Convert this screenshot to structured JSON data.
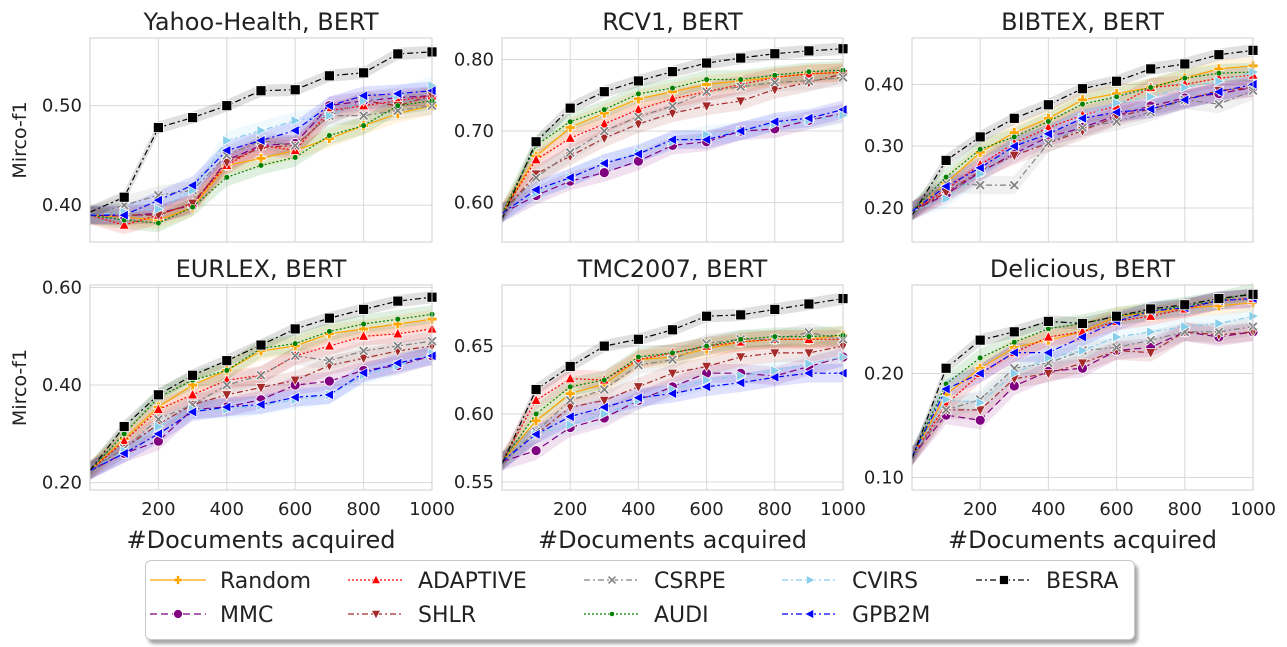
{
  "x_ticks": [
    200,
    400,
    600,
    800,
    1000
  ],
  "x_label": "#Documents acquired",
  "y_label": "Mirco-f1",
  "methods": [
    {
      "name": "Random",
      "color": "#ffa500",
      "dash": "",
      "marker": "plus"
    },
    {
      "name": "MMC",
      "color": "#800080",
      "dash": "7 4",
      "marker": "circle"
    },
    {
      "name": "ADAPTIVE",
      "color": "#ff0000",
      "dash": "2 2",
      "marker": "triangle-up"
    },
    {
      "name": "SHLR",
      "color": "#a52a2a",
      "dash": "6 3 2 3",
      "marker": "triangle-down"
    },
    {
      "name": "CSRPE",
      "color": "#808080",
      "dash": "6 3 2 3",
      "marker": "x"
    },
    {
      "name": "AUDI",
      "color": "#008000",
      "dash": "2 2",
      "marker": "dot"
    },
    {
      "name": "CVIRS",
      "color": "#87ceeb",
      "dash": "6 3 2 3",
      "marker": "triangle-right"
    },
    {
      "name": "GPB2M",
      "color": "#0000ff",
      "dash": "6 3 2 3",
      "marker": "triangle-left"
    },
    {
      "name": "BESRA",
      "color": "#000000",
      "dash": "6 3 2 3",
      "marker": "square"
    }
  ],
  "chart_data": [
    {
      "type": "line",
      "title": "Yahoo-Health, BERT",
      "ylim": [
        0.363,
        0.568
      ],
      "yticks": [
        0.4,
        0.5
      ],
      "ytick_labels": [
        "0.40",
        "0.50"
      ],
      "x": [
        0,
        100,
        200,
        300,
        400,
        500,
        600,
        700,
        800,
        900,
        1000
      ],
      "series": [
        {
          "name": "Random",
          "values": [
            0.39,
            0.388,
            0.385,
            0.398,
            0.44,
            0.447,
            0.455,
            0.467,
            0.48,
            0.492,
            0.5
          ]
        },
        {
          "name": "MMC",
          "values": [
            0.39,
            0.389,
            0.392,
            0.4,
            0.445,
            0.46,
            0.462,
            0.5,
            0.505,
            0.508,
            0.51
          ]
        },
        {
          "name": "ADAPTIVE",
          "values": [
            0.39,
            0.38,
            0.39,
            0.402,
            0.44,
            0.46,
            0.455,
            0.495,
            0.5,
            0.505,
            0.51
          ]
        },
        {
          "name": "SHLR",
          "values": [
            0.39,
            0.39,
            0.39,
            0.402,
            0.443,
            0.458,
            0.46,
            0.49,
            0.505,
            0.5,
            0.51
          ]
        },
        {
          "name": "CSRPE",
          "values": [
            0.39,
            0.4,
            0.41,
            0.415,
            0.45,
            0.465,
            0.46,
            0.49,
            0.49,
            0.495,
            0.5
          ]
        },
        {
          "name": "AUDI",
          "values": [
            0.39,
            0.385,
            0.382,
            0.398,
            0.428,
            0.44,
            0.448,
            0.47,
            0.48,
            0.5,
            0.505
          ]
        },
        {
          "name": "CVIRS",
          "values": [
            0.39,
            0.393,
            0.396,
            0.415,
            0.465,
            0.475,
            0.485,
            0.49,
            0.505,
            0.51,
            0.52
          ]
        },
        {
          "name": "GPB2M",
          "values": [
            0.39,
            0.39,
            0.405,
            0.42,
            0.455,
            0.465,
            0.475,
            0.5,
            0.51,
            0.512,
            0.515
          ]
        },
        {
          "name": "BESRA",
          "values": [
            0.393,
            0.408,
            0.478,
            0.488,
            0.5,
            0.515,
            0.516,
            0.53,
            0.533,
            0.552,
            0.554
          ]
        }
      ]
    },
    {
      "type": "line",
      "title": "RCV1, BERT",
      "ylim": [
        0.545,
        0.83
      ],
      "yticks": [
        0.6,
        0.7,
        0.8
      ],
      "ytick_labels": [
        "0.60",
        "0.70",
        "0.80"
      ],
      "x": [
        0,
        100,
        200,
        300,
        400,
        500,
        600,
        700,
        800,
        900,
        1000
      ],
      "series": [
        {
          "name": "Random",
          "values": [
            0.585,
            0.665,
            0.705,
            0.725,
            0.745,
            0.755,
            0.765,
            0.77,
            0.775,
            0.78,
            0.782
          ]
        },
        {
          "name": "MMC",
          "values": [
            0.585,
            0.61,
            0.63,
            0.642,
            0.658,
            0.68,
            0.685,
            0.7,
            0.703,
            0.715,
            0.725
          ]
        },
        {
          "name": "ADAPTIVE",
          "values": [
            0.585,
            0.66,
            0.69,
            0.71,
            0.73,
            0.745,
            0.755,
            0.765,
            0.775,
            0.78,
            0.782
          ]
        },
        {
          "name": "SHLR",
          "values": [
            0.585,
            0.64,
            0.665,
            0.69,
            0.71,
            0.725,
            0.735,
            0.742,
            0.758,
            0.768,
            0.78
          ]
        },
        {
          "name": "CSRPE",
          "values": [
            0.585,
            0.635,
            0.67,
            0.7,
            0.72,
            0.735,
            0.755,
            0.762,
            0.768,
            0.77,
            0.775
          ]
        },
        {
          "name": "AUDI",
          "values": [
            0.585,
            0.68,
            0.713,
            0.73,
            0.752,
            0.76,
            0.772,
            0.772,
            0.778,
            0.783,
            0.785
          ]
        },
        {
          "name": "CVIRS",
          "values": [
            0.585,
            0.613,
            0.635,
            0.655,
            0.67,
            0.685,
            0.695,
            0.7,
            0.71,
            0.715,
            0.722
          ]
        },
        {
          "name": "GPB2M",
          "values": [
            0.585,
            0.618,
            0.635,
            0.655,
            0.668,
            0.688,
            0.688,
            0.7,
            0.713,
            0.718,
            0.73
          ]
        },
        {
          "name": "BESRA",
          "values": [
            0.577,
            0.685,
            0.732,
            0.755,
            0.77,
            0.783,
            0.795,
            0.802,
            0.808,
            0.812,
            0.815
          ]
        }
      ]
    },
    {
      "type": "line",
      "title": "BIBTEX, BERT",
      "ylim": [
        0.145,
        0.475
      ],
      "yticks": [
        0.2,
        0.3,
        0.4
      ],
      "ytick_labels": [
        "0.20",
        "0.30",
        "0.40"
      ],
      "x": [
        0,
        100,
        200,
        300,
        400,
        500,
        600,
        700,
        800,
        900,
        1000
      ],
      "series": [
        {
          "name": "Random",
          "values": [
            0.195,
            0.24,
            0.29,
            0.322,
            0.345,
            0.375,
            0.385,
            0.395,
            0.41,
            0.425,
            0.43
          ]
        },
        {
          "name": "MMC",
          "values": [
            0.195,
            0.222,
            0.258,
            0.288,
            0.315,
            0.33,
            0.35,
            0.365,
            0.378,
            0.385,
            0.395
          ]
        },
        {
          "name": "ADAPTIVE",
          "values": [
            0.195,
            0.23,
            0.27,
            0.305,
            0.33,
            0.35,
            0.365,
            0.395,
            0.4,
            0.41,
            0.415
          ]
        },
        {
          "name": "SHLR",
          "values": [
            0.195,
            0.225,
            0.26,
            0.285,
            0.305,
            0.325,
            0.348,
            0.36,
            0.375,
            0.39,
            0.395
          ]
        },
        {
          "name": "CSRPE",
          "values": [
            0.195,
            0.24,
            0.237,
            0.237,
            0.305,
            0.33,
            0.34,
            0.355,
            0.375,
            0.368,
            0.39
          ]
        },
        {
          "name": "AUDI",
          "values": [
            0.195,
            0.25,
            0.295,
            0.315,
            0.34,
            0.368,
            0.38,
            0.395,
            0.41,
            0.418,
            0.42
          ]
        },
        {
          "name": "CVIRS",
          "values": [
            0.195,
            0.215,
            0.255,
            0.3,
            0.32,
            0.345,
            0.37,
            0.38,
            0.395,
            0.405,
            0.42
          ]
        },
        {
          "name": "GPB2M",
          "values": [
            0.195,
            0.235,
            0.265,
            0.3,
            0.32,
            0.345,
            0.355,
            0.36,
            0.375,
            0.388,
            0.4
          ]
        },
        {
          "name": "BESRA",
          "values": [
            0.188,
            0.277,
            0.315,
            0.345,
            0.367,
            0.393,
            0.405,
            0.425,
            0.433,
            0.448,
            0.455
          ]
        }
      ]
    },
    {
      "type": "line",
      "title": "EURLEX, BERT",
      "ylim": [
        0.185,
        0.605
      ],
      "yticks": [
        0.2,
        0.4,
        0.6
      ],
      "ytick_labels": [
        "0.20",
        "0.40",
        "0.60"
      ],
      "x": [
        0,
        100,
        200,
        300,
        400,
        500,
        600,
        700,
        800,
        900,
        1000
      ],
      "series": [
        {
          "name": "Random",
          "values": [
            0.225,
            0.29,
            0.355,
            0.4,
            0.43,
            0.47,
            0.48,
            0.505,
            0.515,
            0.525,
            0.535
          ]
        },
        {
          "name": "MMC",
          "values": [
            0.225,
            0.26,
            0.285,
            0.35,
            0.355,
            0.37,
            0.4,
            0.408,
            0.43,
            0.44,
            0.46
          ]
        },
        {
          "name": "ADAPTIVE",
          "values": [
            0.225,
            0.285,
            0.35,
            0.38,
            0.41,
            0.42,
            0.46,
            0.48,
            0.5,
            0.505,
            0.515
          ]
        },
        {
          "name": "SHLR",
          "values": [
            0.225,
            0.27,
            0.32,
            0.36,
            0.38,
            0.395,
            0.41,
            0.44,
            0.455,
            0.47,
            0.48
          ]
        },
        {
          "name": "CSRPE",
          "values": [
            0.225,
            0.27,
            0.33,
            0.36,
            0.4,
            0.42,
            0.46,
            0.45,
            0.47,
            0.48,
            0.49
          ]
        },
        {
          "name": "AUDI",
          "values": [
            0.225,
            0.3,
            0.375,
            0.41,
            0.43,
            0.475,
            0.485,
            0.51,
            0.525,
            0.535,
            0.545
          ]
        },
        {
          "name": "CVIRS",
          "values": [
            0.225,
            0.265,
            0.315,
            0.35,
            0.35,
            0.358,
            0.37,
            0.38,
            0.42,
            0.44,
            0.465
          ]
        },
        {
          "name": "GPB2M",
          "values": [
            0.225,
            0.26,
            0.3,
            0.345,
            0.355,
            0.36,
            0.375,
            0.38,
            0.425,
            0.445,
            0.46
          ]
        },
        {
          "name": "BESRA",
          "values": [
            0.225,
            0.315,
            0.38,
            0.42,
            0.45,
            0.482,
            0.515,
            0.537,
            0.555,
            0.572,
            0.58
          ]
        }
      ]
    },
    {
      "type": "line",
      "title": "TMC2007, BERT",
      "ylim": [
        0.544,
        0.695
      ],
      "yticks": [
        0.55,
        0.6,
        0.65
      ],
      "ytick_labels": [
        "0.55",
        "0.60",
        "0.65"
      ],
      "x": [
        0,
        100,
        200,
        300,
        400,
        500,
        600,
        700,
        800,
        900,
        1000
      ],
      "series": [
        {
          "name": "Random",
          "values": [
            0.565,
            0.595,
            0.615,
            0.622,
            0.64,
            0.642,
            0.648,
            0.653,
            0.655,
            0.655,
            0.658
          ]
        },
        {
          "name": "MMC",
          "values": [
            0.565,
            0.573,
            0.59,
            0.597,
            0.61,
            0.62,
            0.63,
            0.63,
            0.628,
            0.635,
            0.642
          ]
        },
        {
          "name": "ADAPTIVE",
          "values": [
            0.565,
            0.61,
            0.626,
            0.625,
            0.64,
            0.645,
            0.65,
            0.653,
            0.655,
            0.655,
            0.655
          ]
        },
        {
          "name": "SHLR",
          "values": [
            0.565,
            0.585,
            0.605,
            0.61,
            0.62,
            0.63,
            0.635,
            0.642,
            0.645,
            0.645,
            0.65
          ]
        },
        {
          "name": "CSRPE",
          "values": [
            0.565,
            0.587,
            0.61,
            0.618,
            0.636,
            0.64,
            0.652,
            0.655,
            0.655,
            0.66,
            0.655
          ]
        },
        {
          "name": "AUDI",
          "values": [
            0.565,
            0.6,
            0.62,
            0.625,
            0.642,
            0.645,
            0.65,
            0.655,
            0.657,
            0.657,
            0.658
          ]
        },
        {
          "name": "CVIRS",
          "values": [
            0.565,
            0.585,
            0.592,
            0.6,
            0.61,
            0.618,
            0.625,
            0.628,
            0.632,
            0.637,
            0.642
          ]
        },
        {
          "name": "GPB2M",
          "values": [
            0.565,
            0.585,
            0.598,
            0.605,
            0.612,
            0.615,
            0.62,
            0.623,
            0.627,
            0.63,
            0.63
          ]
        },
        {
          "name": "BESRA",
          "values": [
            0.563,
            0.618,
            0.635,
            0.65,
            0.655,
            0.662,
            0.672,
            0.673,
            0.677,
            0.681,
            0.685
          ]
        }
      ]
    },
    {
      "type": "line",
      "title": "Delicious, BERT",
      "ylim": [
        0.088,
        0.285
      ],
      "yticks": [
        0.1,
        0.2
      ],
      "ytick_labels": [
        "0.10",
        "0.20"
      ],
      "x": [
        0,
        100,
        200,
        300,
        400,
        500,
        600,
        700,
        800,
        900,
        1000
      ],
      "series": [
        {
          "name": "Random",
          "values": [
            0.12,
            0.18,
            0.205,
            0.225,
            0.232,
            0.24,
            0.255,
            0.258,
            0.263,
            0.265,
            0.268
          ]
        },
        {
          "name": "MMC",
          "values": [
            0.12,
            0.16,
            0.155,
            0.188,
            0.202,
            0.205,
            0.222,
            0.225,
            0.24,
            0.235,
            0.24
          ]
        },
        {
          "name": "ADAPTIVE",
          "values": [
            0.12,
            0.17,
            0.2,
            0.22,
            0.235,
            0.24,
            0.25,
            0.255,
            0.262,
            0.27,
            0.272
          ]
        },
        {
          "name": "SHLR",
          "values": [
            0.12,
            0.165,
            0.165,
            0.195,
            0.2,
            0.21,
            0.222,
            0.22,
            0.24,
            0.237,
            0.24
          ]
        },
        {
          "name": "CSRPE",
          "values": [
            0.12,
            0.165,
            0.175,
            0.205,
            0.21,
            0.222,
            0.225,
            0.232,
            0.24,
            0.24,
            0.245
          ]
        },
        {
          "name": "AUDI",
          "values": [
            0.12,
            0.19,
            0.215,
            0.23,
            0.243,
            0.248,
            0.255,
            0.26,
            0.265,
            0.27,
            0.278
          ]
        },
        {
          "name": "CVIRS",
          "values": [
            0.12,
            0.175,
            0.172,
            0.2,
            0.215,
            0.222,
            0.235,
            0.24,
            0.245,
            0.248,
            0.255
          ]
        },
        {
          "name": "GPB2M",
          "values": [
            0.12,
            0.185,
            0.2,
            0.22,
            0.22,
            0.235,
            0.25,
            0.26,
            0.263,
            0.27,
            0.272
          ]
        },
        {
          "name": "BESRA",
          "values": [
            0.118,
            0.205,
            0.232,
            0.24,
            0.25,
            0.248,
            0.255,
            0.262,
            0.266,
            0.272,
            0.276
          ]
        }
      ]
    }
  ]
}
